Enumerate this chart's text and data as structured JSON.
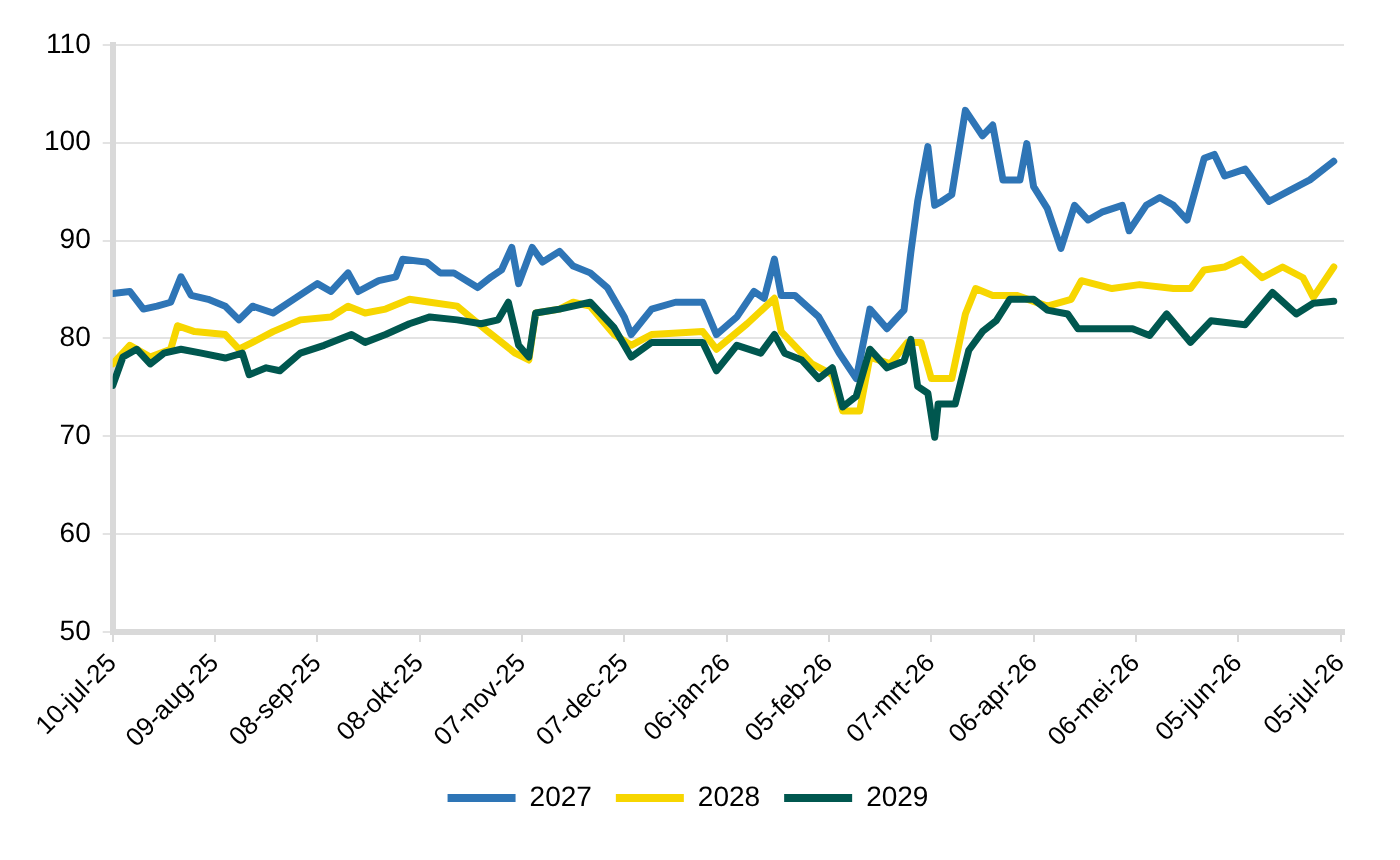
{
  "chart_data": {
    "type": "line",
    "ylim": [
      50,
      110
    ],
    "yticks": [
      50,
      60,
      70,
      80,
      90,
      100,
      110
    ],
    "xlim": [
      "2025-07-10",
      "2026-07-06"
    ],
    "xticks": [
      {
        "value": "2025-07-10",
        "label": "10-jul-25"
      },
      {
        "value": "2025-08-09",
        "label": "09-aug-25"
      },
      {
        "value": "2025-09-08",
        "label": "08-sep-25"
      },
      {
        "value": "2025-10-08",
        "label": "08-okt-25"
      },
      {
        "value": "2025-11-07",
        "label": "07-nov-25"
      },
      {
        "value": "2025-12-07",
        "label": "07-dec-25"
      },
      {
        "value": "2026-01-06",
        "label": "06-jan-26"
      },
      {
        "value": "2026-02-05",
        "label": "05-feb-26"
      },
      {
        "value": "2026-03-07",
        "label": "07-mrt-26"
      },
      {
        "value": "2026-04-06",
        "label": "06-apr-26"
      },
      {
        "value": "2026-05-06",
        "label": "06-mei-26"
      },
      {
        "value": "2026-06-05",
        "label": "05-jun-26"
      },
      {
        "value": "2026-07-05",
        "label": "05-jul-26"
      }
    ],
    "grid": "y",
    "legend": "bottom",
    "marker": "none",
    "line_style": "solid",
    "series": [
      {
        "name": "2027",
        "color": "#2e75b6",
        "x": [
          "2025-07-10",
          "2025-07-15",
          "2025-07-19",
          "2025-07-23",
          "2025-07-27",
          "2025-07-30",
          "2025-08-02",
          "2025-08-07",
          "2025-08-12",
          "2025-08-16",
          "2025-08-20",
          "2025-08-26",
          "2025-09-01",
          "2025-09-08",
          "2025-09-12",
          "2025-09-17",
          "2025-09-20",
          "2025-09-26",
          "2025-10-01",
          "2025-10-03",
          "2025-10-10",
          "2025-10-14",
          "2025-10-18",
          "2025-10-25",
          "2025-10-29",
          "2025-11-01",
          "2025-11-04",
          "2025-11-06",
          "2025-11-10",
          "2025-11-13",
          "2025-11-18",
          "2025-11-22",
          "2025-11-27",
          "2025-12-02",
          "2025-12-07",
          "2025-12-09",
          "2025-12-15",
          "2025-12-22",
          "2025-12-30",
          "2026-01-03",
          "2026-01-09",
          "2026-01-14",
          "2026-01-17",
          "2026-01-20",
          "2026-01-22",
          "2026-01-26",
          "2026-02-02",
          "2026-02-08",
          "2026-02-13",
          "2026-02-17",
          "2026-02-22",
          "2026-02-27",
          "2026-03-01",
          "2026-03-03",
          "2026-03-06",
          "2026-03-08",
          "2026-03-10",
          "2026-03-13",
          "2026-03-17",
          "2026-03-22",
          "2026-03-25",
          "2026-03-28",
          "2026-04-02",
          "2026-04-04",
          "2026-04-06",
          "2026-04-10",
          "2026-04-14",
          "2026-04-18",
          "2026-04-22",
          "2026-04-26",
          "2026-05-02",
          "2026-05-04",
          "2026-05-09",
          "2026-05-13",
          "2026-05-17",
          "2026-05-21",
          "2026-05-26",
          "2026-05-29",
          "2026-06-01",
          "2026-06-07",
          "2026-06-14",
          "2026-06-20",
          "2026-06-26",
          "2026-07-03"
        ],
        "values": [
          84.6,
          84.8,
          83,
          83.3,
          83.7,
          86.3,
          84.4,
          84,
          83.3,
          81.9,
          83.3,
          82.6,
          84,
          85.6,
          84.8,
          86.7,
          84.8,
          85.9,
          86.3,
          88.1,
          87.8,
          86.7,
          86.7,
          85.2,
          86.3,
          87,
          89.3,
          85.6,
          89.3,
          87.8,
          88.9,
          87.4,
          86.7,
          85.2,
          82.2,
          80.4,
          83,
          83.7,
          83.7,
          80.4,
          82.2,
          84.8,
          84.1,
          88.1,
          84.4,
          84.4,
          82.2,
          78.5,
          75.9,
          83,
          81,
          82.9,
          88.8,
          94,
          99.6,
          93.6,
          94,
          94.7,
          103.3,
          100.7,
          101.8,
          96.2,
          96.2,
          99.9,
          95.5,
          93.3,
          89.2,
          93.6,
          92.1,
          92.9,
          93.6,
          91,
          93.6,
          94.4,
          93.6,
          92.1,
          98.4,
          98.8,
          96.6,
          97.3,
          94,
          95.1,
          96.2,
          98.1
        ]
      },
      {
        "name": "2028",
        "color": "#f7d600",
        "x": [
          "2025-07-10",
          "2025-07-15",
          "2025-07-21",
          "2025-07-27",
          "2025-07-29",
          "2025-08-03",
          "2025-08-12",
          "2025-08-16",
          "2025-08-20",
          "2025-08-26",
          "2025-09-03",
          "2025-09-12",
          "2025-09-17",
          "2025-09-22",
          "2025-09-28",
          "2025-10-05",
          "2025-10-11",
          "2025-10-19",
          "2025-10-28",
          "2025-11-05",
          "2025-11-09",
          "2025-11-11",
          "2025-11-18",
          "2025-11-22",
          "2025-11-27",
          "2025-12-04",
          "2025-12-09",
          "2025-12-15",
          "2025-12-30",
          "2026-01-03",
          "2026-01-12",
          "2026-01-20",
          "2026-01-22",
          "2026-01-31",
          "2026-02-06",
          "2026-02-09",
          "2026-02-14",
          "2026-02-17",
          "2026-02-23",
          "2026-02-28",
          "2026-03-04",
          "2026-03-07",
          "2026-03-13",
          "2026-03-17",
          "2026-03-20",
          "2026-03-25",
          "2026-04-01",
          "2026-04-10",
          "2026-04-17",
          "2026-04-20",
          "2026-04-29",
          "2026-05-07",
          "2026-05-17",
          "2026-05-22",
          "2026-05-26",
          "2026-06-01",
          "2026-06-06",
          "2026-06-12",
          "2026-06-18",
          "2026-06-24",
          "2026-06-27",
          "2026-07-03"
        ],
        "values": [
          77.4,
          79.3,
          78.1,
          78.9,
          81.3,
          80.7,
          80.4,
          78.9,
          79.6,
          80.7,
          81.9,
          82.2,
          83.3,
          82.6,
          83,
          84,
          83.7,
          83.3,
          80.7,
          78.5,
          77.8,
          82.6,
          83,
          83.7,
          83.3,
          80.4,
          79.3,
          80.4,
          80.7,
          78.9,
          81.5,
          84.1,
          80.7,
          77.4,
          76.3,
          72.6,
          72.6,
          78.1,
          77.4,
          79.6,
          79.6,
          75.9,
          75.9,
          82.5,
          85.1,
          84.4,
          84.4,
          83.3,
          84,
          85.9,
          85.1,
          85.5,
          85.1,
          85.1,
          87,
          87.3,
          88.1,
          86.2,
          87.3,
          86.2,
          84.2,
          87.3
        ]
      },
      {
        "name": "2029",
        "color": "#00574f",
        "x": [
          "2025-07-10",
          "2025-07-13",
          "2025-07-17",
          "2025-07-21",
          "2025-07-25",
          "2025-07-30",
          "2025-08-05",
          "2025-08-12",
          "2025-08-17",
          "2025-08-19",
          "2025-08-24",
          "2025-08-28",
          "2025-09-03",
          "2025-09-10",
          "2025-09-18",
          "2025-09-22",
          "2025-09-28",
          "2025-10-05",
          "2025-10-11",
          "2025-10-19",
          "2025-10-26",
          "2025-10-31",
          "2025-11-03",
          "2025-11-06",
          "2025-11-09",
          "2025-11-11",
          "2025-11-18",
          "2025-11-27",
          "2025-12-04",
          "2025-12-09",
          "2025-12-15",
          "2025-12-30",
          "2026-01-03",
          "2026-01-09",
          "2026-01-16",
          "2026-01-20",
          "2026-01-23",
          "2026-01-28",
          "2026-02-02",
          "2026-02-06",
          "2026-02-09",
          "2026-02-13",
          "2026-02-17",
          "2026-02-22",
          "2026-02-27",
          "2026-03-01",
          "2026-03-03",
          "2026-03-06",
          "2026-03-08",
          "2026-03-09",
          "2026-03-14",
          "2026-03-18",
          "2026-03-22",
          "2026-03-26",
          "2026-03-30",
          "2026-04-06",
          "2026-04-10",
          "2026-04-16",
          "2026-04-19",
          "2026-04-26",
          "2026-05-05",
          "2026-05-10",
          "2026-05-15",
          "2026-05-22",
          "2026-05-28",
          "2026-06-07",
          "2026-06-15",
          "2026-06-22",
          "2026-06-27",
          "2026-07-03"
        ],
        "values": [
          75.2,
          78.1,
          78.9,
          77.4,
          78.5,
          78.9,
          78.5,
          78,
          78.5,
          76.3,
          77,
          76.7,
          78.5,
          79.3,
          80.4,
          79.6,
          80.4,
          81.5,
          82.2,
          81.9,
          81.5,
          81.9,
          83.7,
          79.3,
          78.1,
          82.6,
          83,
          83.7,
          81.1,
          78.1,
          79.6,
          79.6,
          76.7,
          79.3,
          78.5,
          80.4,
          78.5,
          77.8,
          75.9,
          77,
          73,
          74.1,
          78.9,
          77,
          77.7,
          79.9,
          75.1,
          74.4,
          69.9,
          73.3,
          73.3,
          78.8,
          80.7,
          81.8,
          84,
          84,
          82.9,
          82.5,
          81,
          81,
          81,
          80.3,
          82.5,
          79.6,
          81.8,
          81.4,
          84.7,
          82.5,
          83.6,
          83.8
        ]
      }
    ]
  }
}
